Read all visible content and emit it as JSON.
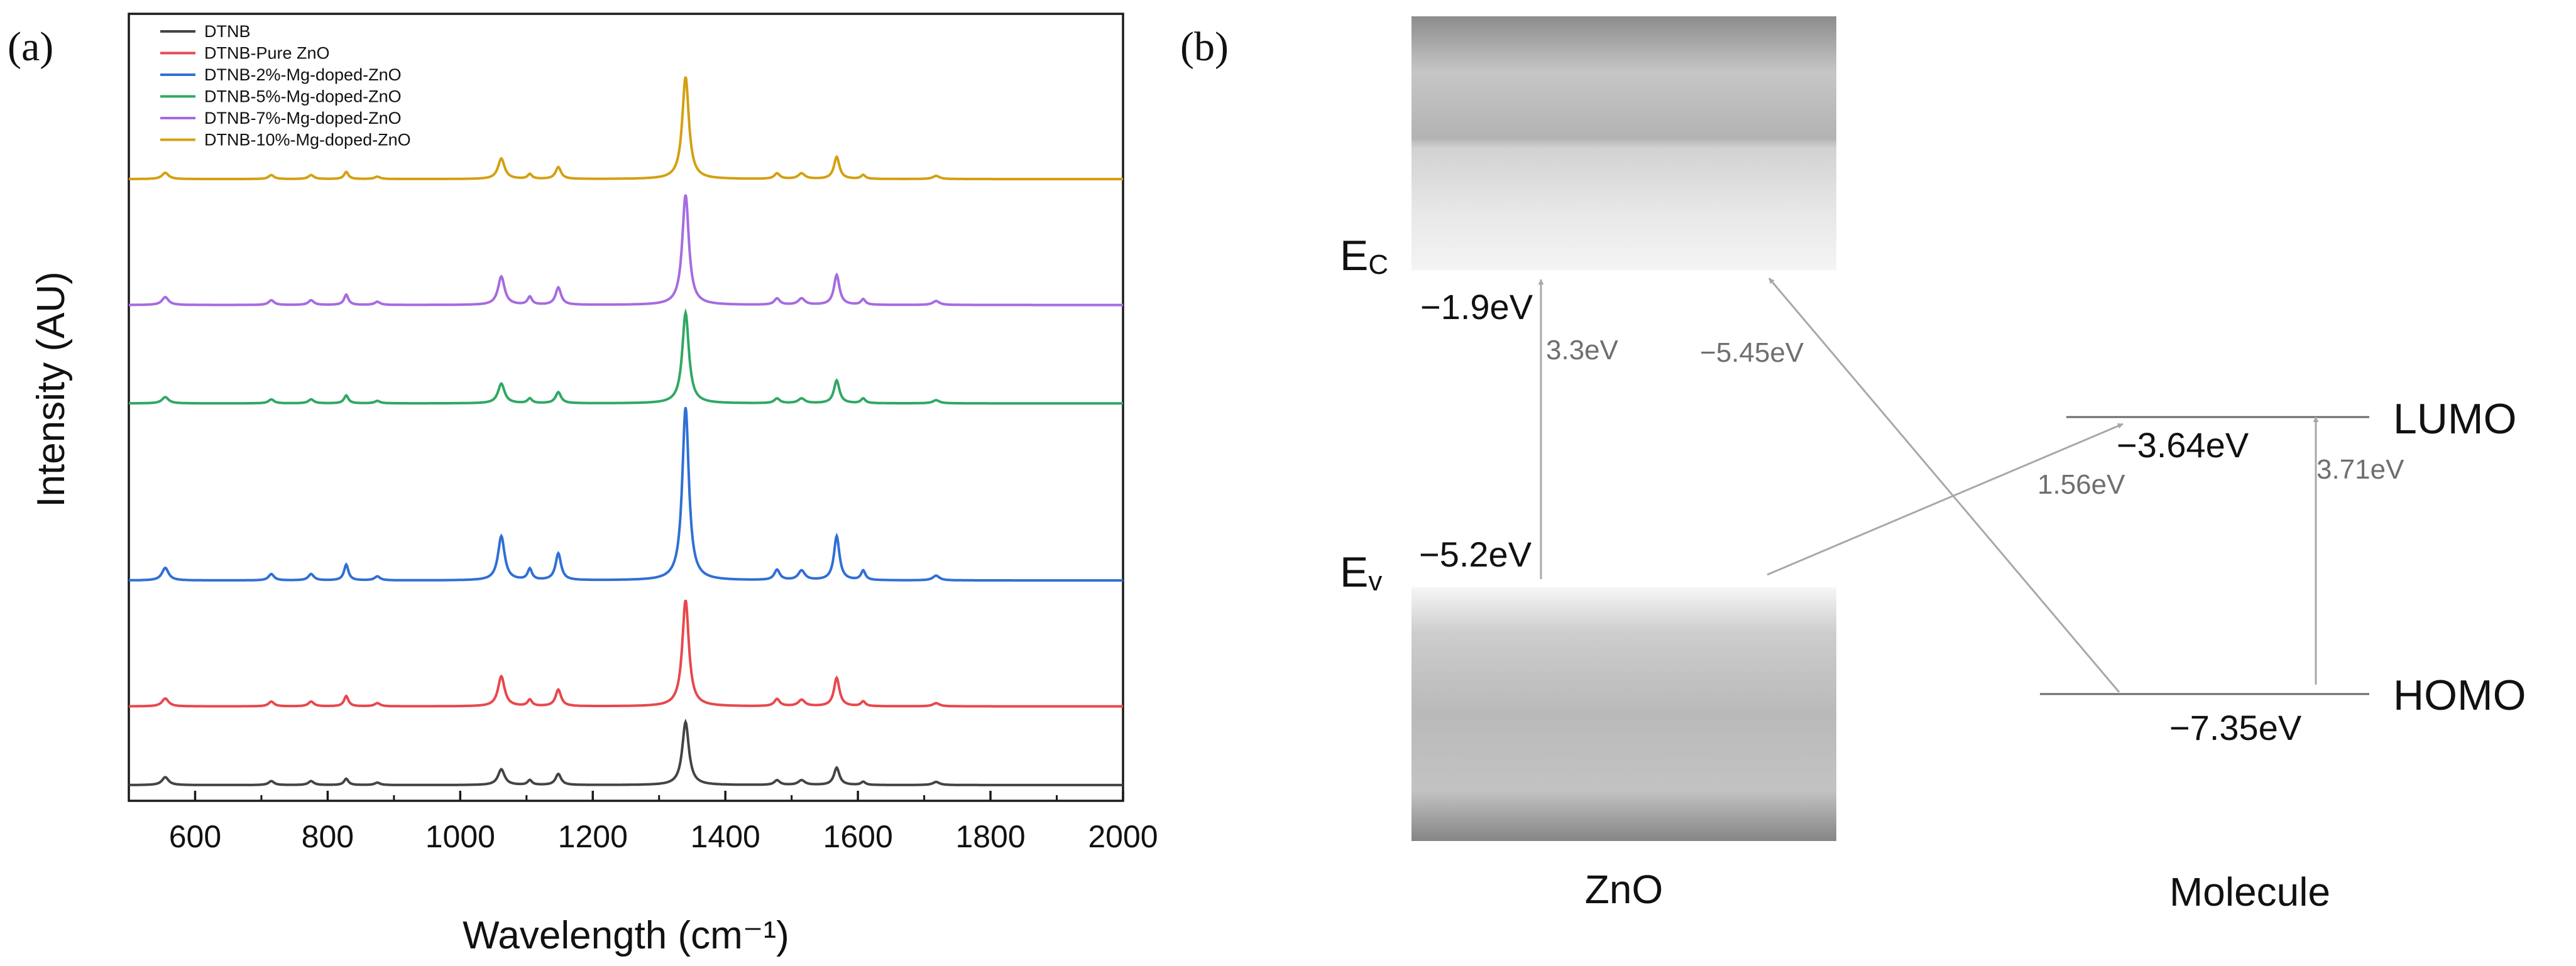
{
  "colors": {
    "dtnb": "#444444",
    "pure_zno": "#e8484c",
    "mg2": "#2f6fd6",
    "mg5": "#2fa863",
    "mg7": "#a66be0",
    "mg10": "#d4a012",
    "axis": "#1a1a1a",
    "arrow": "#a8a8a8",
    "level_line": "#6a6a6a"
  },
  "panel_a": {
    "label": "(a)",
    "chart_data": {
      "type": "line",
      "title": "",
      "xlabel": "Wavelength (cm⁻¹)",
      "ylabel": "Intensity (AU)",
      "xlim": [
        500,
        2000
      ],
      "ylim": [
        0,
        10
      ],
      "x_ticks": [
        600,
        800,
        1000,
        1200,
        1400,
        1600,
        1800,
        2000
      ],
      "x_tick_labels": [
        "600",
        "800",
        "1000",
        "1200",
        "1400",
        "1600",
        "1800",
        "2000"
      ],
      "y_ticks_shown": false,
      "legend_position": "top-left",
      "peaks_cm": [
        555,
        715,
        775,
        828,
        875,
        1062,
        1105,
        1148,
        1340,
        1478,
        1515,
        1568,
        1608,
        1718
      ],
      "peak_widths_cm": [
        6,
        5,
        5,
        4,
        5,
        6,
        4,
        5,
        6,
        5,
        6,
        5,
        4,
        6
      ],
      "series": [
        {
          "name": "DTNB",
          "color_key": "dtnb",
          "baseline": 0.2,
          "peak_heights": [
            0.1,
            0.05,
            0.05,
            0.08,
            0.03,
            0.2,
            0.06,
            0.14,
            0.8,
            0.06,
            0.06,
            0.22,
            0.04,
            0.04
          ]
        },
        {
          "name": "DTNB-Pure ZnO",
          "color_key": "pure_zno",
          "baseline": 1.2,
          "peak_heights": [
            0.1,
            0.06,
            0.06,
            0.13,
            0.04,
            0.38,
            0.08,
            0.21,
            1.35,
            0.09,
            0.08,
            0.36,
            0.06,
            0.04
          ]
        },
        {
          "name": "DTNB-2%-Mg-doped-ZnO",
          "color_key": "mg2",
          "baseline": 2.8,
          "peak_heights": [
            0.16,
            0.08,
            0.08,
            0.2,
            0.05,
            0.56,
            0.14,
            0.34,
            2.2,
            0.13,
            0.12,
            0.56,
            0.12,
            0.06
          ]
        },
        {
          "name": "DTNB-5%-Mg-doped-ZnO",
          "color_key": "mg5",
          "baseline": 5.05,
          "peak_heights": [
            0.08,
            0.05,
            0.05,
            0.1,
            0.03,
            0.25,
            0.06,
            0.14,
            1.15,
            0.06,
            0.06,
            0.29,
            0.06,
            0.04
          ]
        },
        {
          "name": "DTNB-7%-Mg-doped-ZnO",
          "color_key": "mg7",
          "baseline": 6.3,
          "peak_heights": [
            0.1,
            0.06,
            0.06,
            0.13,
            0.04,
            0.36,
            0.1,
            0.22,
            1.4,
            0.08,
            0.08,
            0.38,
            0.07,
            0.05
          ]
        },
        {
          "name": "DTNB-10%-Mg-doped-ZnO",
          "color_key": "mg10",
          "baseline": 7.9,
          "peak_heights": [
            0.08,
            0.05,
            0.05,
            0.09,
            0.03,
            0.26,
            0.06,
            0.15,
            1.3,
            0.07,
            0.07,
            0.28,
            0.05,
            0.04
          ]
        }
      ]
    }
  },
  "panel_b": {
    "label": "(b)",
    "zno_label": "ZnO",
    "molecule_label": "Molecule",
    "ec_main": "E",
    "ec_sub": "C",
    "ev_main": "E",
    "ev_sub": "v",
    "zno_cb_energy": "−1.9eV",
    "zno_vb_energy": "−5.2eV",
    "lumo_label": "LUMO",
    "homo_label": "HOMO",
    "lumo_energy": "−3.64eV",
    "homo_energy": "−7.35eV",
    "gap_zno": "3.3eV",
    "gap_molecule": "3.71eV",
    "transfer_vb_lumo": "1.56eV",
    "transfer_homo_cb": "−5.45eV"
  }
}
